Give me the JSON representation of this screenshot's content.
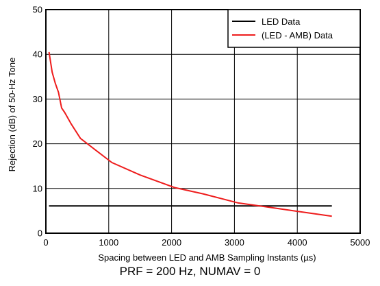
{
  "chart_data": {
    "type": "line",
    "xlabel": "Spacing between LED and AMB Sampling Instants (µs)",
    "ylabel": "Rejection (dB) of 50-Hz Tone",
    "xlim": [
      0,
      5000
    ],
    "ylim": [
      0,
      50
    ],
    "xticks": [
      "0",
      "1000",
      "2000",
      "3000",
      "4000",
      "5000"
    ],
    "yticks": [
      "0",
      "10",
      "20",
      "30",
      "40",
      "50"
    ],
    "grid": true,
    "legend_position": "top-right",
    "series": [
      {
        "name": "LED Data",
        "color": "#000000",
        "points": [
          [
            50,
            6.1
          ],
          [
            4550,
            6.1
          ]
        ]
      },
      {
        "name": "(LED - AMB) Data",
        "color": "#ee1c1c",
        "points": [
          [
            50,
            40.5
          ],
          [
            100,
            36
          ],
          [
            150,
            33.5
          ],
          [
            200,
            31.5
          ],
          [
            250,
            28
          ],
          [
            300,
            27
          ],
          [
            400,
            24.5
          ],
          [
            550,
            21.2
          ],
          [
            800,
            18.5
          ],
          [
            1050,
            15.8
          ],
          [
            1500,
            13
          ],
          [
            2050,
            10.2
          ],
          [
            2500,
            8.8
          ],
          [
            3050,
            6.8
          ],
          [
            3500,
            5.9
          ],
          [
            4000,
            4.9
          ],
          [
            4550,
            3.8
          ]
        ]
      }
    ]
  },
  "caption": "PRF = 200 Hz, NUMAV = 0"
}
